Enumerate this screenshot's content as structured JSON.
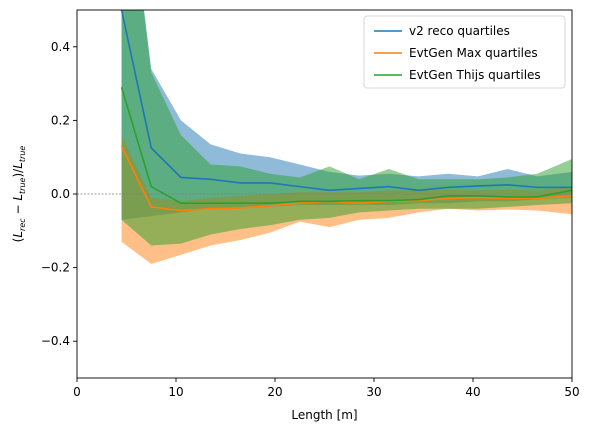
{
  "chart_data": {
    "type": "line",
    "title": "",
    "xlabel": "Length [m]",
    "ylabel": "(L_rec − L_true)/L_true",
    "xlim": [
      0,
      50
    ],
    "ylim": [
      -0.5,
      0.5
    ],
    "xticks": [
      "0",
      "10",
      "20",
      "30",
      "40",
      "50"
    ],
    "yticks": [
      "−0.4",
      "−0.2",
      "0.0",
      "0.2",
      "0.4"
    ],
    "xtick_values": [
      0,
      10,
      20,
      30,
      40,
      50
    ],
    "ytick_values": [
      -0.4,
      -0.2,
      0.0,
      0.2,
      0.4
    ],
    "grid": false,
    "reference_line": 0,
    "legend_position": "top-right",
    "x": [
      4.5,
      7.5,
      10.5,
      13.5,
      16.5,
      19.5,
      22.5,
      25.5,
      28.5,
      31.5,
      34.5,
      37.5,
      40.5,
      43.5,
      46.5,
      50.0
    ],
    "series": [
      {
        "name": "v2 reco quartiles",
        "color": "#1f77b4",
        "median": [
          0.5,
          0.125,
          0.045,
          0.04,
          0.03,
          0.03,
          0.02,
          0.01,
          0.015,
          0.02,
          0.01,
          0.018,
          0.022,
          0.025,
          0.018,
          0.018
        ],
        "upper": [
          1.0,
          0.34,
          0.2,
          0.135,
          0.11,
          0.1,
          0.08,
          0.06,
          0.05,
          0.055,
          0.048,
          0.055,
          0.048,
          0.068,
          0.048,
          0.06
        ],
        "lower": [
          -0.07,
          -0.06,
          -0.05,
          -0.04,
          -0.04,
          -0.035,
          -0.03,
          -0.03,
          -0.03,
          -0.03,
          -0.025,
          -0.025,
          -0.02,
          -0.02,
          -0.015,
          -0.01
        ]
      },
      {
        "name": "EvtGen Max quartiles",
        "color": "#ff7f0e",
        "median": [
          0.13,
          -0.035,
          -0.045,
          -0.04,
          -0.038,
          -0.032,
          -0.025,
          -0.02,
          -0.025,
          -0.02,
          -0.018,
          -0.012,
          -0.01,
          -0.012,
          -0.012,
          -0.005
        ],
        "upper": [
          0.16,
          -0.01,
          -0.02,
          -0.01,
          -0.005,
          0.0,
          0.005,
          0.005,
          0.005,
          0.01,
          0.01,
          0.012,
          0.01,
          0.012,
          0.01,
          0.02
        ],
        "lower": [
          -0.13,
          -0.19,
          -0.165,
          -0.14,
          -0.125,
          -0.105,
          -0.075,
          -0.09,
          -0.07,
          -0.065,
          -0.05,
          -0.04,
          -0.045,
          -0.042,
          -0.045,
          -0.055
        ]
      },
      {
        "name": "EvtGen Thijs quartiles",
        "color": "#2ca02c",
        "median": [
          0.29,
          0.02,
          -0.025,
          -0.025,
          -0.025,
          -0.025,
          -0.02,
          -0.02,
          -0.018,
          -0.018,
          -0.015,
          -0.005,
          -0.005,
          -0.008,
          -0.008,
          0.01
        ],
        "upper": [
          1.0,
          0.33,
          0.16,
          0.08,
          0.075,
          0.055,
          0.045,
          0.075,
          0.04,
          0.068,
          0.04,
          0.04,
          0.04,
          0.045,
          0.055,
          0.095
        ],
        "lower": [
          -0.07,
          -0.14,
          -0.135,
          -0.11,
          -0.095,
          -0.085,
          -0.07,
          -0.065,
          -0.05,
          -0.045,
          -0.04,
          -0.04,
          -0.04,
          -0.035,
          -0.03,
          -0.025
        ]
      }
    ]
  }
}
